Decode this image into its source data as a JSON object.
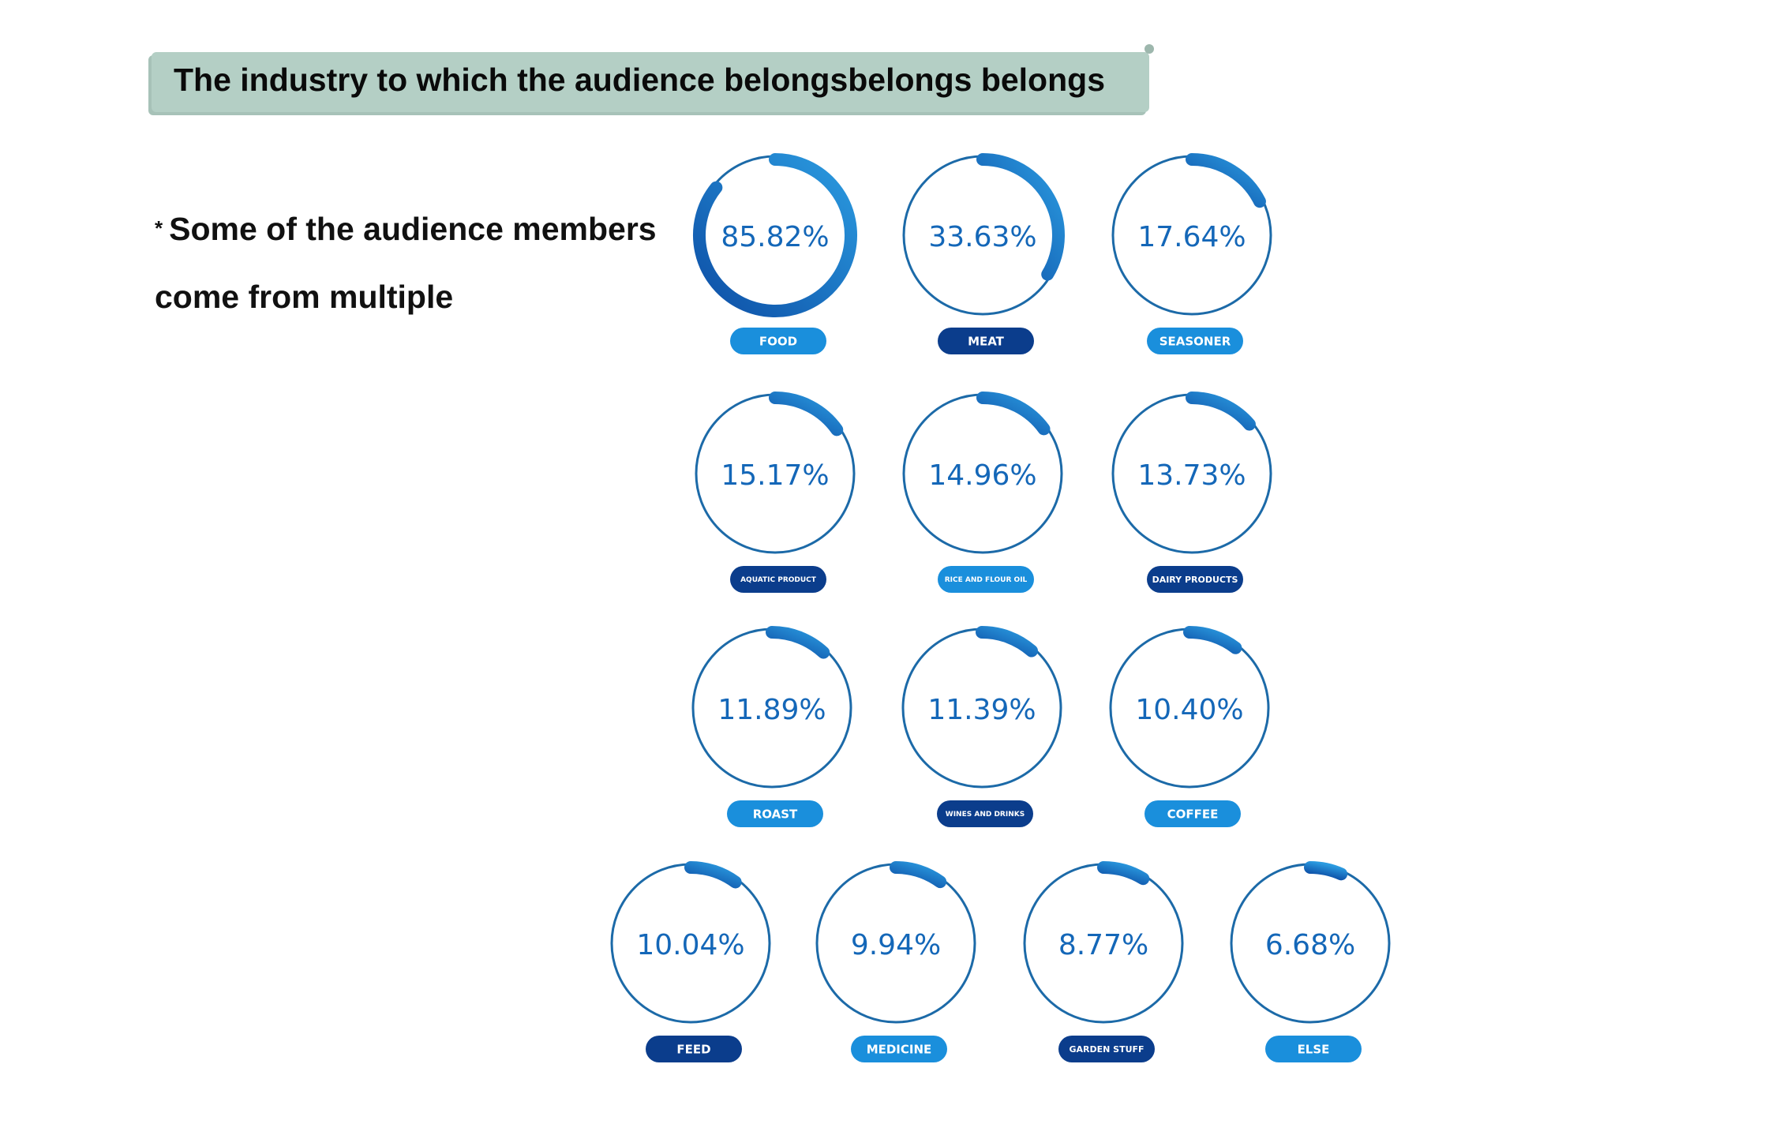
{
  "title": "The industry to which the audience belongsbelongs belongs",
  "note": {
    "star": "*",
    "text": "Some of the audience members come from multiple"
  },
  "colors": {
    "ring_dark": "#0d4fa6",
    "ring_light": "#2b9be0",
    "ring_track": "#1c6aa8",
    "label_blue": "#1a8fdc",
    "label_navy": "#0b3d8c",
    "value_text": "#1467b8",
    "title_bg": "#b4cfc5"
  },
  "chart_data": {
    "type": "donut",
    "unit": "%",
    "items": [
      {
        "label": "FOOD",
        "value": 85.82,
        "value_text": "85.82%",
        "label_style": "blue"
      },
      {
        "label": "MEAT",
        "value": 33.63,
        "value_text": "33.63%",
        "label_style": "navy"
      },
      {
        "label": "SEASONER",
        "value": 17.64,
        "value_text": "17.64%",
        "label_style": "blue"
      },
      {
        "label": "AQUATIC PRODUCT",
        "value": 15.17,
        "value_text": "15.17%",
        "label_style": "navy"
      },
      {
        "label": "RICE AND FLOUR OIL",
        "value": 14.96,
        "value_text": "14.96%",
        "label_style": "blue"
      },
      {
        "label": "DAIRY PRODUCTS",
        "value": 13.73,
        "value_text": "13.73%",
        "label_style": "navy"
      },
      {
        "label": "ROAST",
        "value": 11.89,
        "value_text": "11.89%",
        "label_style": "blue"
      },
      {
        "label": "WINES AND DRINKS",
        "value": 11.39,
        "value_text": "11.39%",
        "label_style": "navy"
      },
      {
        "label": "COFFEE",
        "value": 10.4,
        "value_text": "10.40%",
        "label_style": "blue"
      },
      {
        "label": "FEED",
        "value": 10.04,
        "value_text": "10.04%",
        "label_style": "navy"
      },
      {
        "label": "MEDICINE",
        "value": 9.94,
        "value_text": "9.94%",
        "label_style": "blue"
      },
      {
        "label": "GARDEN STUFF",
        "value": 8.77,
        "value_text": "8.77%",
        "label_style": "navy"
      },
      {
        "label": "ELSE",
        "value": 6.68,
        "value_text": "6.68%",
        "label_style": "blue"
      }
    ]
  }
}
